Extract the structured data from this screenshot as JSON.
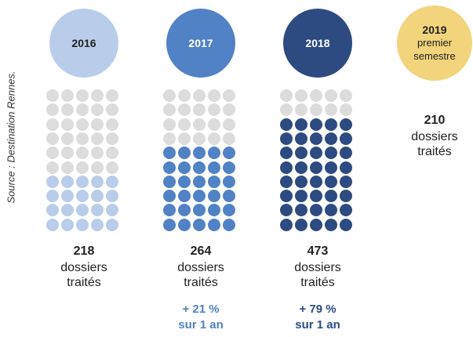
{
  "chart_data": {
    "type": "pictogram",
    "categories": [
      "2016",
      "2017",
      "2018",
      "2019"
    ],
    "category_notes": [
      null,
      null,
      null,
      "premier semestre"
    ],
    "colors": [
      "#b9cdea",
      "#5182c5",
      "#2d4b81",
      "#f1d47c"
    ],
    "values": [
      218,
      264,
      473,
      210
    ],
    "unit_label": "dossiers traités",
    "growth_labels": [
      null,
      "+ 21 %",
      "+ 79 %",
      null
    ],
    "growth_period": "sur 1 an",
    "dots": {
      "filled": [
        20,
        30,
        40,
        null
      ],
      "total": 50,
      "empty_color": "#dcdcdc"
    },
    "source": "Source : Destination Rennes."
  }
}
